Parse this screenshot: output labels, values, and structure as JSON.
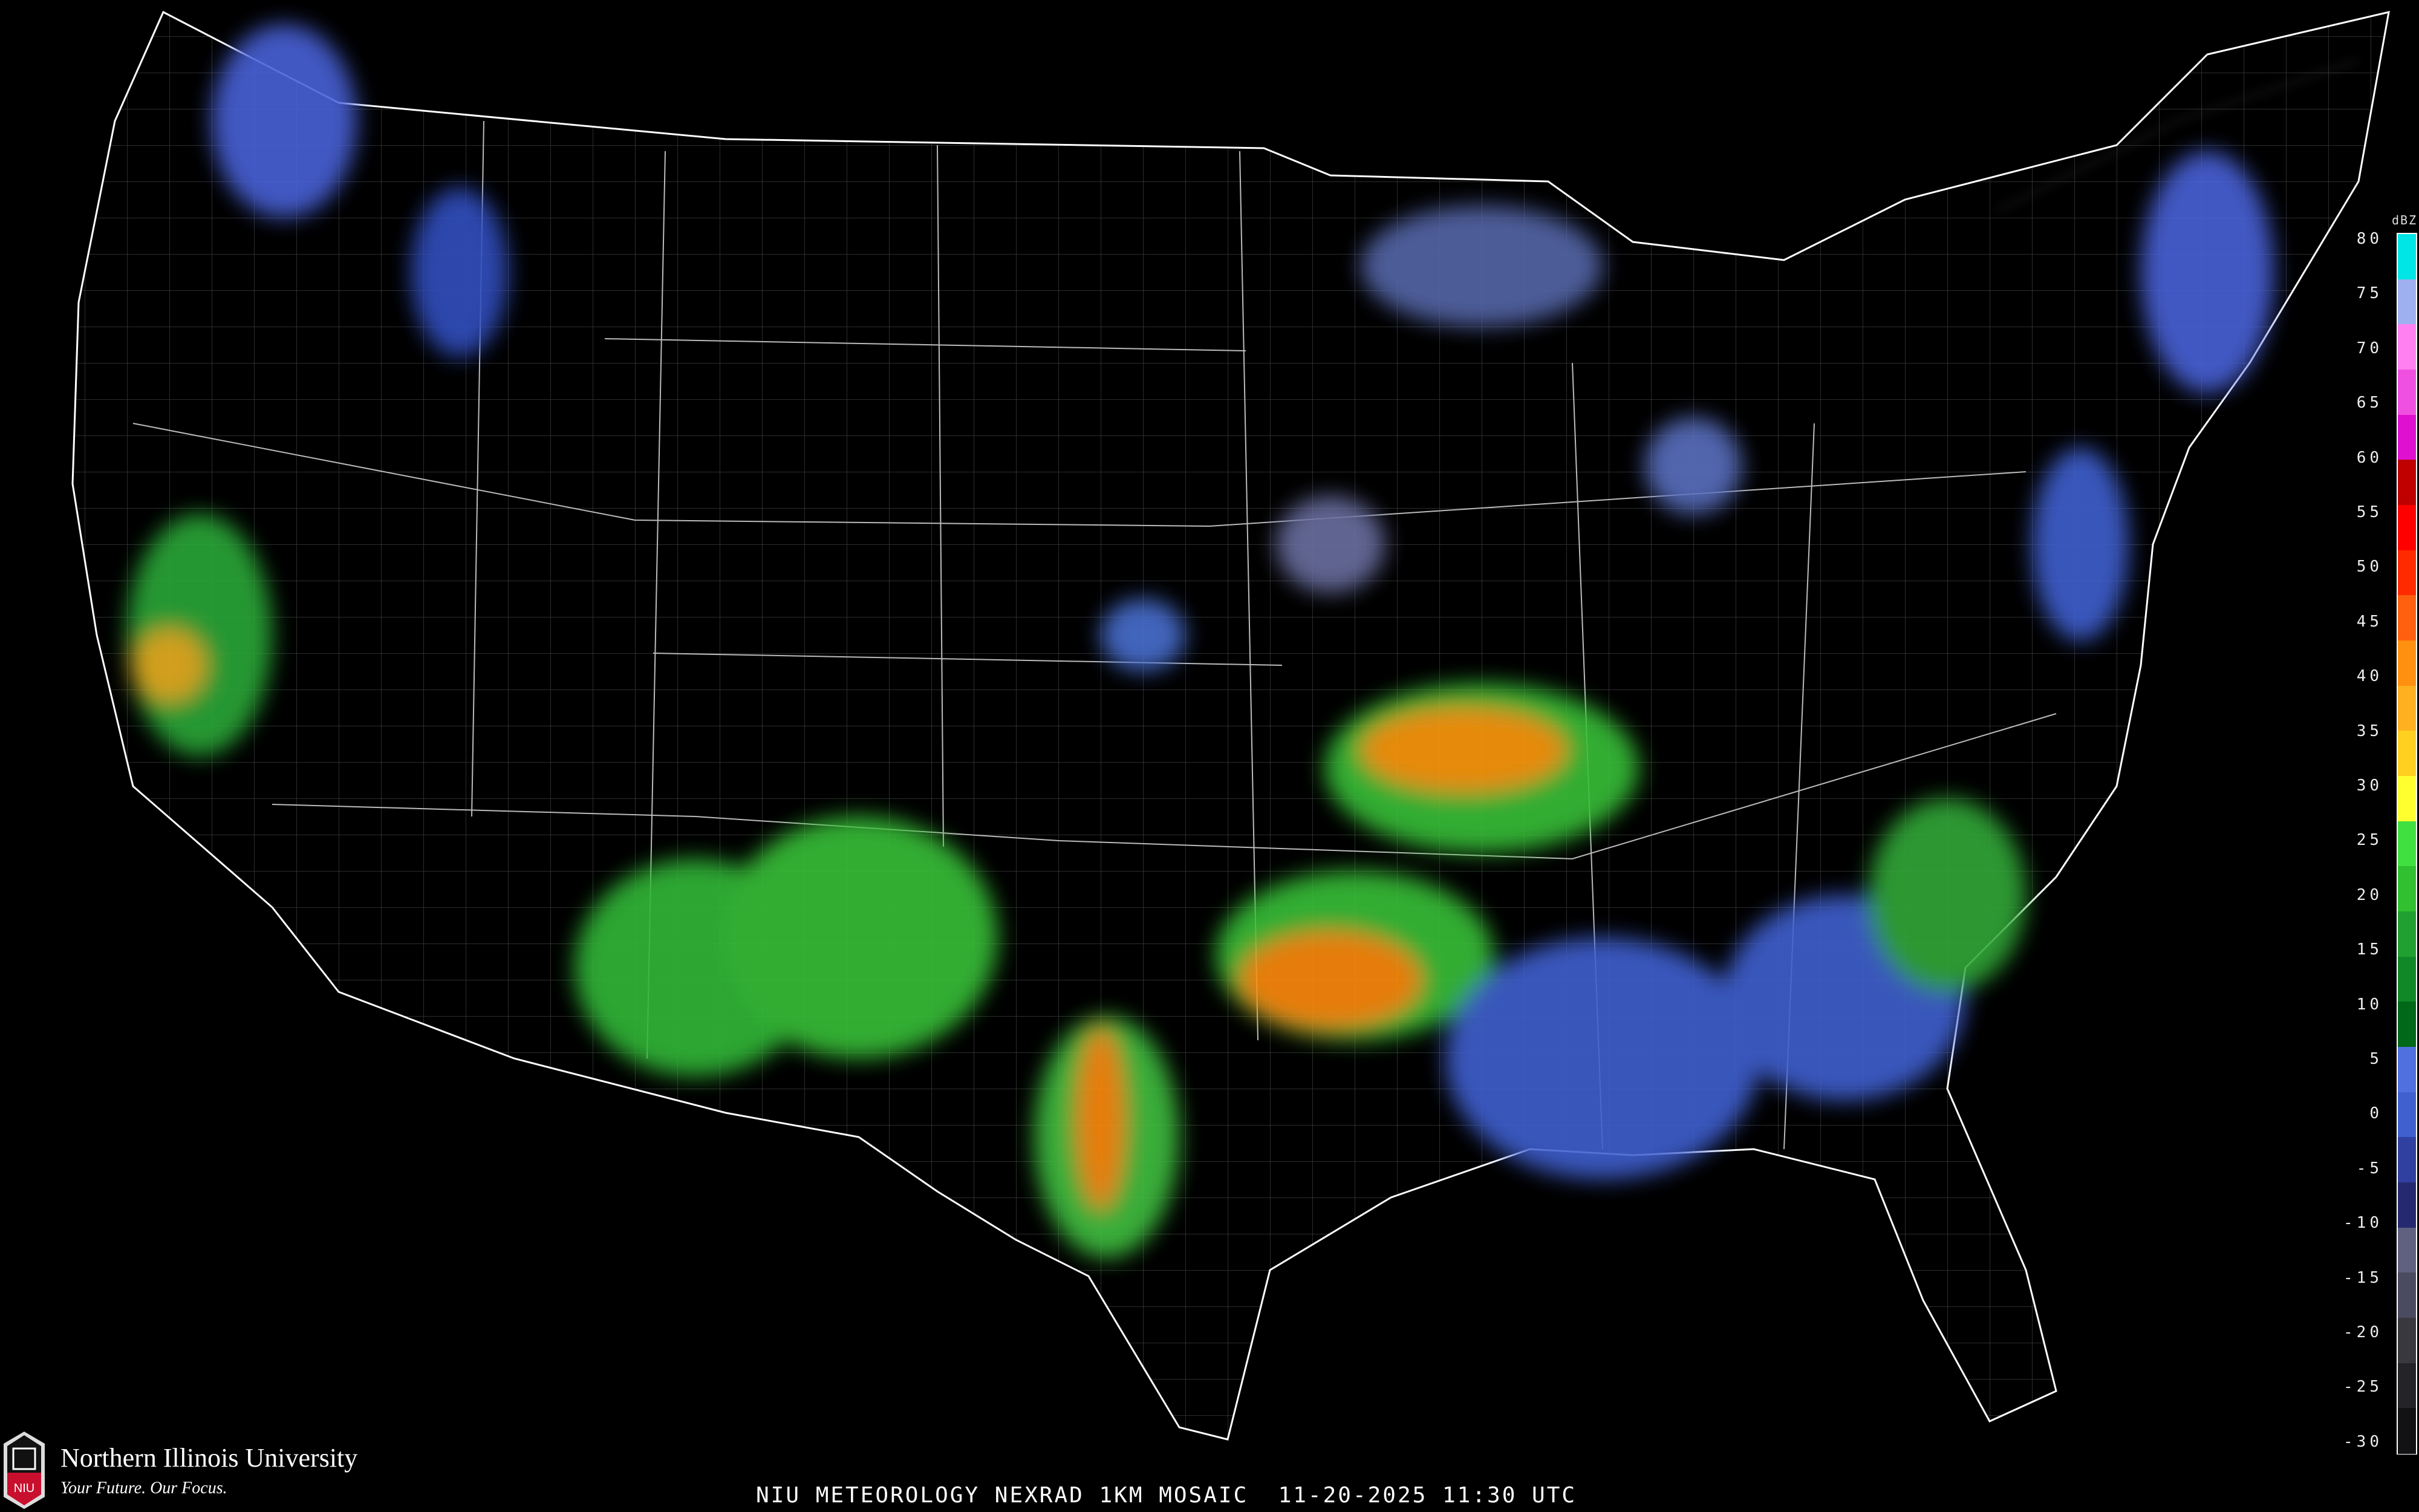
{
  "caption": "NIU METEOROLOGY NEXRAD 1KM MOSAIC  11-20-2025 11:30 UTC",
  "logo": {
    "name": "Northern Illinois University",
    "tagline": "Your Future. Our Focus.",
    "mark_text": "NIU",
    "color": "#c8102e"
  },
  "legend": {
    "units": "dBZ",
    "ticks": [
      "80",
      "75",
      "70",
      "65",
      "60",
      "55",
      "50",
      "45",
      "40",
      "35",
      "30",
      "25",
      "20",
      "15",
      "10",
      "5",
      "0",
      "-5",
      "-10",
      "-15",
      "-20",
      "-25",
      "-30"
    ],
    "colors": [
      "#00e5e5",
      "#9fb0f0",
      "#ff80f0",
      "#f050e0",
      "#e010d0",
      "#c00000",
      "#ff0000",
      "#ff2a00",
      "#ff6010",
      "#ff9010",
      "#ffb020",
      "#ffd020",
      "#ffff30",
      "#40e040",
      "#30c030",
      "#20a030",
      "#108828",
      "#006818",
      "#5070e0",
      "#4060d0",
      "#3040a0",
      "#252a70",
      "#606080",
      "#4a4a60",
      "#38383e",
      "#242428",
      "#121214"
    ]
  },
  "map": {
    "region": "CONUS",
    "background": "#000000",
    "boundary_color": "#ffffff",
    "county_color": "#555555",
    "road_color": "#8a4a20"
  }
}
